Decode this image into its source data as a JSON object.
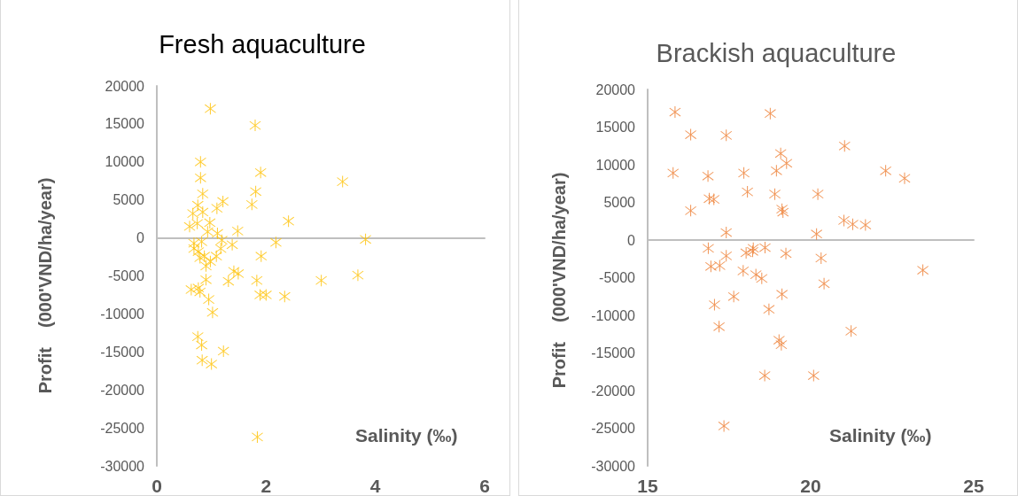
{
  "chart_data": [
    {
      "type": "scatter",
      "title": "Fresh aquaculture",
      "xlabel": "Salinity (‰)",
      "ylabel": "Profit    (000'VND/ha/year)",
      "marker": "cross",
      "xlim": [
        0,
        6
      ],
      "xticks": [
        0,
        2,
        4,
        6
      ],
      "ylim": [
        -30000,
        20000
      ],
      "yticks": [
        -30000,
        -25000,
        -20000,
        -15000,
        -10000,
        -5000,
        0,
        5000,
        10000,
        15000,
        20000
      ],
      "series": [
        {
          "color": "#ffc000",
          "x": [
            0.98,
            1.8,
            0.8,
            1.9,
            0.8,
            1.81,
            3.4,
            0.84,
            1.74,
            1.21,
            1.1,
            0.75,
            0.66,
            0.84,
            2.41,
            0.6,
            0.74,
            0.97,
            1.48,
            0.93,
            1.11,
            1.19,
            2.18,
            3.82,
            0.68,
            0.82,
            1.38,
            0.68,
            1.17,
            0.76,
            0.87,
            1.09,
            1.91,
            0.79,
            0.98,
            0.9,
            1.41,
            1.49,
            0.9,
            1.31,
            1.83,
            3.01,
            3.68,
            0.63,
            0.76,
            0.79,
            1.89,
            2.0,
            2.34,
            0.95,
            1.02,
            0.75,
            0.82,
            1.22,
            0.83,
            1.0,
            1.84
          ],
          "values": [
            17000,
            14800,
            10000,
            8600,
            7900,
            6100,
            7400,
            5800,
            4400,
            4800,
            3900,
            4300,
            3200,
            3400,
            2200,
            1500,
            1900,
            2000,
            900,
            800,
            600,
            -300,
            -600,
            -200,
            -700,
            -500,
            -900,
            -1400,
            -1400,
            -1800,
            -2400,
            -2400,
            -2400,
            -2600,
            -3100,
            -3700,
            -4400,
            -4700,
            -5500,
            -5700,
            -5600,
            -5600,
            -4900,
            -6800,
            -6600,
            -7100,
            -7500,
            -7500,
            -7700,
            -8100,
            -9800,
            -13000,
            -14100,
            -14900,
            -16100,
            -16600,
            -26200
          ]
        }
      ]
    },
    {
      "type": "scatter",
      "title": "Brackish aquaculture",
      "xlabel": "Salinity (‰)",
      "ylabel": "Profit    (000'VND/ha/year)",
      "marker": "cross",
      "xlim": [
        15,
        25
      ],
      "xticks": [
        15,
        20,
        25
      ],
      "ylim": [
        -30000,
        20000
      ],
      "yticks": [
        -30000,
        -25000,
        -20000,
        -15000,
        -10000,
        -5000,
        0,
        5000,
        10000,
        15000,
        20000
      ],
      "series": [
        {
          "color": "#ed7d31",
          "x": [
            15.84,
            18.76,
            16.32,
            17.41,
            19.08,
            19.26,
            15.78,
            16.85,
            17.95,
            18.95,
            18.06,
            18.9,
            16.89,
            17.03,
            16.32,
            19.12,
            19.15,
            17.41,
            16.86,
            17.41,
            18.02,
            18.22,
            18.24,
            18.6,
            19.24,
            16.94,
            17.21,
            17.93,
            18.32,
            18.5,
            17.64,
            19.12,
            17.05,
            18.72,
            17.19,
            19.03,
            19.1,
            18.59,
            17.34,
            21.04,
            22.3,
            22.88,
            20.22,
            21.02,
            21.29,
            21.68,
            20.18,
            20.32,
            20.41,
            23.44,
            21.24,
            20.09
          ],
          "values": [
            17000,
            16800,
            14000,
            13900,
            11500,
            10200,
            8900,
            8500,
            8900,
            9200,
            6400,
            6100,
            5500,
            5400,
            3900,
            4100,
            3700,
            1000,
            -1100,
            -2100,
            -1700,
            -1500,
            -1100,
            -1000,
            -1800,
            -3500,
            -3400,
            -4100,
            -4600,
            -5100,
            -7500,
            -7200,
            -8600,
            -9200,
            -11500,
            -13300,
            -13900,
            -18000,
            -24700,
            12500,
            9200,
            8200,
            6100,
            2600,
            2100,
            2000,
            800,
            -2400,
            -5800,
            -4000,
            -12100,
            -18000
          ]
        }
      ]
    }
  ]
}
